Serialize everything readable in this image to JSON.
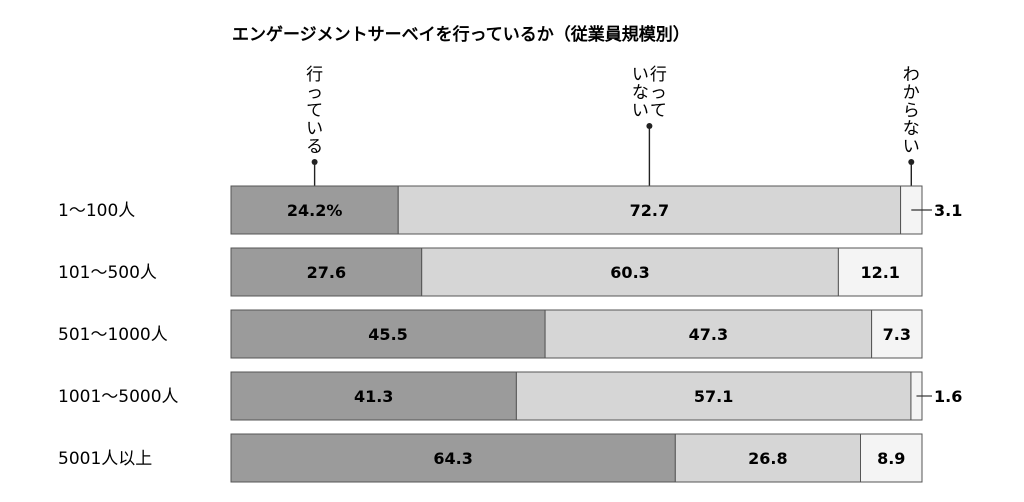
{
  "chart_data": {
    "type": "bar",
    "orientation": "horizontal",
    "stacked": "percent",
    "title": "エンゲージメントサーベイを行っているか（従業員規模別）",
    "categories": [
      "1〜100人",
      "101〜500人",
      "501〜1000人",
      "1001〜5000人",
      "5001人以上"
    ],
    "series": [
      {
        "name": "行っている",
        "values": [
          24.2,
          27.6,
          45.5,
          41.3,
          64.3
        ]
      },
      {
        "name": "行っていない",
        "values": [
          72.7,
          60.3,
          47.3,
          57.1,
          26.8
        ]
      },
      {
        "name": "わからない",
        "values": [
          3.1,
          12.1,
          7.3,
          1.6,
          8.9
        ]
      }
    ],
    "value_labels": [
      [
        "24.2%",
        "72.7",
        "3.1"
      ],
      [
        "27.6",
        "60.3",
        "12.1"
      ],
      [
        "45.5",
        "47.3",
        "7.3"
      ],
      [
        "41.3",
        "57.1",
        "1.6"
      ],
      [
        "64.3",
        "26.8",
        "8.9"
      ]
    ],
    "colors": [
      "#9b9b9b",
      "#d6d6d6",
      "#f4f4f4"
    ],
    "legend_placement": "top, vertical labels above first bar",
    "grid": false
  }
}
